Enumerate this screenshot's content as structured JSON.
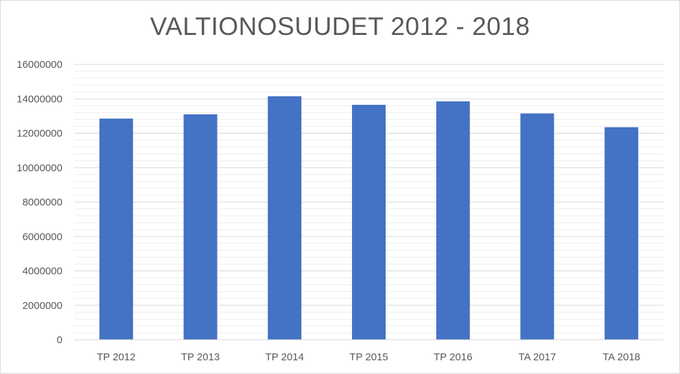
{
  "chart_data": {
    "type": "bar",
    "title": "VALTIONOSUUDET 2012 - 2018",
    "xlabel": "",
    "ylabel": "",
    "categories": [
      "TP 2012",
      "TP 2013",
      "TP 2014",
      "TP 2015",
      "TP 2016",
      "TA 2017",
      "TA 2018"
    ],
    "values": [
      12850000,
      13100000,
      14150000,
      13650000,
      13850000,
      13150000,
      12350000
    ],
    "ylim": [
      0,
      16000000
    ],
    "yticks": [
      "0",
      "2000000",
      "4000000",
      "6000000",
      "8000000",
      "10000000",
      "12000000",
      "14000000",
      "16000000"
    ],
    "grid": true,
    "legend": "none",
    "colors": {
      "bar": "#4472c4",
      "grid_major": "#d9d9d9",
      "grid_minor": "#ededed",
      "text": "#595959"
    }
  }
}
